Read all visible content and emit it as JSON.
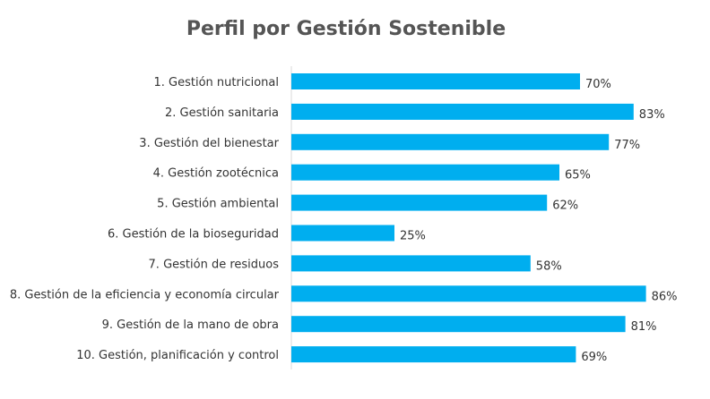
{
  "chart_data": {
    "type": "bar",
    "orientation": "horizontal",
    "title": "Perfil por Gestión Sostenible",
    "categories": [
      "1. Gestión nutricional",
      "2. Gestión sanitaria",
      "3. Gestión del bienestar",
      "4. Gestión zootécnica",
      "5. Gestión ambiental",
      "6. Gestión de la bioseguridad",
      "7. Gestión de residuos",
      "8. Gestión de la eficiencia y economía circular",
      "9. Gestión de la mano de obra",
      "10. Gestión, planificación y control"
    ],
    "values": [
      70,
      83,
      77,
      65,
      62,
      25,
      58,
      86,
      81,
      69
    ],
    "value_labels": [
      "70%",
      "83%",
      "77%",
      "65%",
      "62%",
      "25%",
      "58%",
      "86%",
      "81%",
      "69%"
    ],
    "xlim": [
      0,
      100
    ],
    "grid": false,
    "legend": "none",
    "bar_color": "#00AEEF"
  }
}
